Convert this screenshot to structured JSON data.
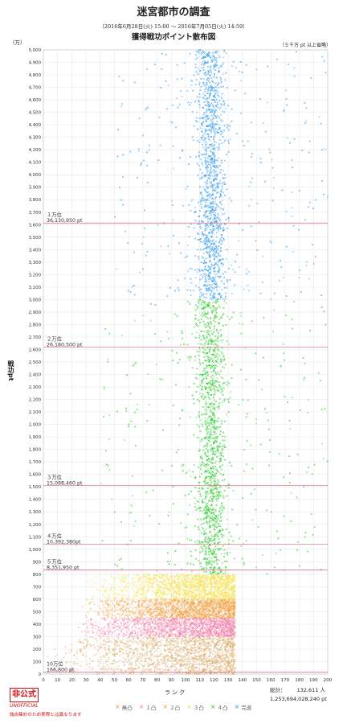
{
  "header": {
    "title": "迷宮都市の調査",
    "period": "（2016年6月28日(火) 15:00 〜 2016年7月05日(火) 14:59）",
    "subtitle": "獲得戦功ポイント散布図",
    "note": "（５千万 pt 以上省略）"
  },
  "footer": {
    "stamp": "非公式",
    "stamp_sub": "UNOFFICIAL",
    "stamp_note": "独自集計のため実際とは異なります",
    "total_label": "総計：",
    "total_people": "132,611 人",
    "total_points": "1,253,694,028,240 pt"
  },
  "chart_data": {
    "type": "scatter",
    "title": "獲得戦功ポイント散布図",
    "xlabel": "ランク",
    "ylabel": "戦功pt",
    "y_unit_label": "（万）",
    "xlim": [
      0,
      200
    ],
    "ylim": [
      0,
      5000
    ],
    "xticks": [
      "0",
      "10",
      "20",
      "30",
      "40",
      "50",
      "60",
      "70",
      "80",
      "90",
      "100",
      "110",
      "120",
      "130",
      "140",
      "150",
      "160",
      "170",
      "180",
      "190",
      "200"
    ],
    "yticks": [
      "0",
      "100",
      "200",
      "300",
      "400",
      "500",
      "600",
      "700",
      "800",
      "900",
      "1,000",
      "1,100",
      "1,200",
      "1,300",
      "1,400",
      "1,500",
      "1,600",
      "1,700",
      "1,800",
      "1,900",
      "2,000",
      "2,100",
      "2,200",
      "2,300",
      "2,400",
      "2,500",
      "2,600",
      "2,700",
      "2,800",
      "2,900",
      "3,000",
      "3,100",
      "3,200",
      "3,300",
      "3,400",
      "3,500",
      "3,600",
      "3,700",
      "3,800",
      "3,900",
      "4,000",
      "4,100",
      "4,200",
      "4,300",
      "4,400",
      "4,500",
      "4,600",
      "4,700",
      "4,800",
      "4,900",
      "5,000"
    ],
    "grid": true,
    "legend_position": "bottom",
    "series": [
      {
        "name": "無凸",
        "color": "#d8a35a",
        "y_range": [
          0,
          300
        ],
        "rank_range": [
          0,
          135
        ]
      },
      {
        "name": "１凸",
        "color": "#f27fa8",
        "y_range": [
          300,
          450
        ],
        "rank_range": [
          20,
          135
        ]
      },
      {
        "name": "２凸",
        "color": "#f2a040",
        "y_range": [
          450,
          600
        ],
        "rank_range": [
          25,
          135
        ]
      },
      {
        "name": "３凸",
        "color": "#f5e04a",
        "y_range": [
          600,
          800
        ],
        "rank_range": [
          30,
          135
        ]
      },
      {
        "name": "４凸",
        "color": "#22cc22",
        "y_range": [
          800,
          3000
        ],
        "rank_range": [
          40,
          200
        ]
      },
      {
        "name": "完遂",
        "color": "#2f9bf0",
        "y_range": [
          3000,
          5000
        ],
        "rank_range": [
          50,
          200
        ]
      }
    ],
    "thresholds": [
      {
        "rank_label": "１万位",
        "value_label": "36,130,950 pt",
        "y": 3613.095
      },
      {
        "rank_label": "２万位",
        "value_label": "26,180,500 pt",
        "y": 2618.05
      },
      {
        "rank_label": "３万位",
        "value_label": "15,098,460 pt",
        "y": 1509.846
      },
      {
        "rank_label": "４万位",
        "value_label": "10,392,380pt",
        "y": 1039.238
      },
      {
        "rank_label": "５万位",
        "value_label": "8,351,950 pt",
        "y": 835.195
      },
      {
        "rank_label": "10万位",
        "value_label": "166,800 pt",
        "y": 16.68
      }
    ]
  }
}
